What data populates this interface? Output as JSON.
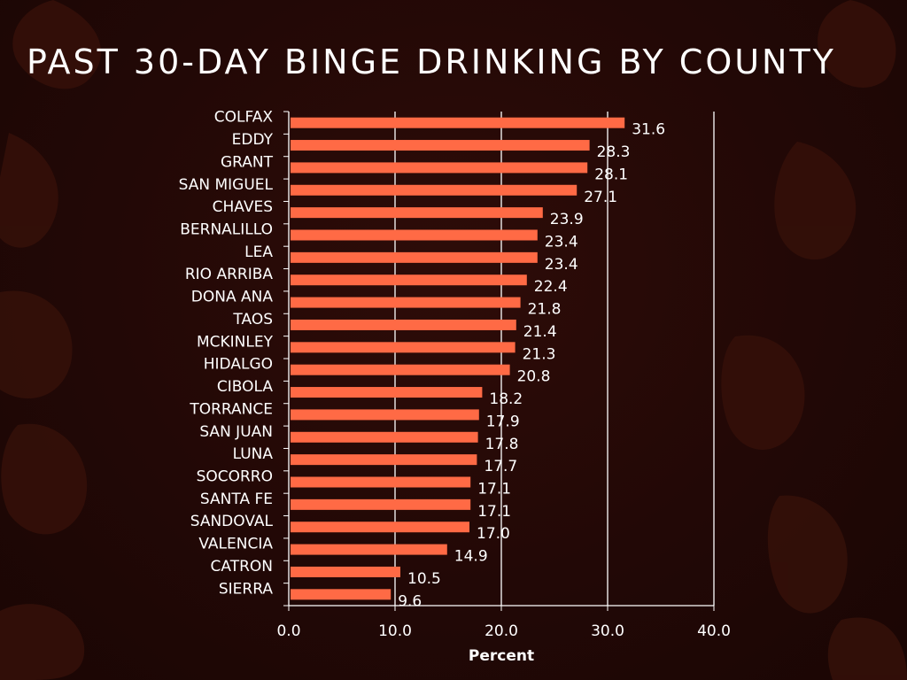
{
  "slide": {
    "title": "PAST 30-DAY BINGE DRINKING BY COUNTY"
  },
  "colors": {
    "bar": "#ff6a45",
    "text": "#ffffff",
    "background": "#220806",
    "leaf": "#3a120b"
  },
  "chart_data": {
    "type": "bar",
    "orientation": "horizontal",
    "title": "PAST 30-DAY BINGE DRINKING BY COUNTY",
    "xlabel": "Percent",
    "ylabel": "",
    "xlim": [
      0,
      40
    ],
    "x_ticks": [
      "0.0",
      "10.0",
      "20.0",
      "30.0",
      "40.0"
    ],
    "grid": "vertical",
    "legend": "none",
    "categories": [
      "COLFAX",
      "EDDY",
      "GRANT",
      "SAN MIGUEL",
      "CHAVES",
      "BERNALILLO",
      "LEA",
      "RIO ARRIBA",
      "DONA ANA",
      "TAOS",
      "MCKINLEY",
      "HIDALGO",
      "CIBOLA",
      "TORRANCE",
      "SAN JUAN",
      "LUNA",
      "SOCORRO",
      "SANTA FE",
      "SANDOVAL",
      "VALENCIA",
      "CATRON",
      "SIERRA"
    ],
    "values": [
      31.6,
      28.3,
      28.1,
      27.1,
      23.9,
      23.4,
      23.4,
      22.4,
      21.8,
      21.4,
      21.3,
      20.8,
      18.2,
      17.9,
      17.8,
      17.7,
      17.1,
      17.1,
      17.0,
      14.9,
      10.5,
      9.6
    ],
    "data_labels": [
      "31.6",
      "28.3",
      "28.1",
      "27.1",
      "23.9",
      "23.4",
      "23.4",
      "22.4",
      "21.8",
      "21.4",
      "21.3",
      "20.8",
      "18.2",
      "17.9",
      "17.8",
      "17.7",
      "17.1",
      "17.1",
      "17.0",
      "14.9",
      "10.5",
      "9.6"
    ]
  }
}
